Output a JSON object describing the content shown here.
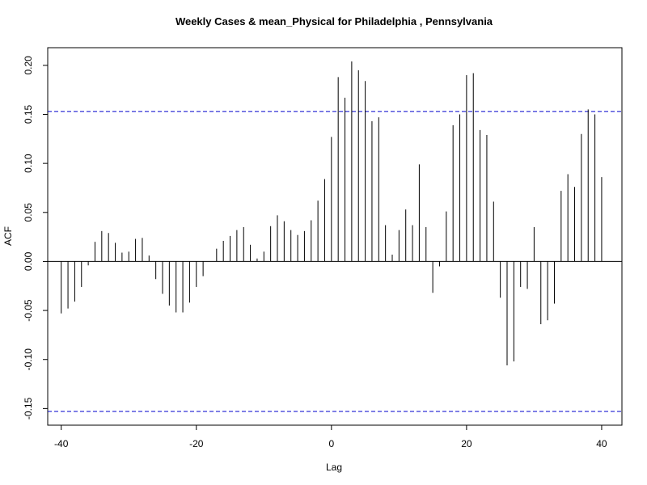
{
  "chart_data": {
    "type": "bar",
    "title": "Weekly Cases & mean_Physical for Philadelphia , Pennsylvania",
    "xlabel": "Lag",
    "ylabel": "ACF",
    "xlim": [
      -42,
      43
    ],
    "ylim": [
      -0.167,
      0.218
    ],
    "x_ticks": [
      {
        "value": -40,
        "label": "-40"
      },
      {
        "value": -20,
        "label": "-20"
      },
      {
        "value": 0,
        "label": "0"
      },
      {
        "value": 20,
        "label": "20"
      },
      {
        "value": 40,
        "label": "40"
      }
    ],
    "y_ticks": [
      {
        "value": -0.15,
        "label": "-0.15"
      },
      {
        "value": -0.1,
        "label": "-0.10"
      },
      {
        "value": -0.05,
        "label": "-0.05"
      },
      {
        "value": 0.0,
        "label": "0.00"
      },
      {
        "value": 0.05,
        "label": "0.05"
      },
      {
        "value": 0.1,
        "label": "0.10"
      },
      {
        "value": 0.15,
        "label": "0.15"
      },
      {
        "value": 0.2,
        "label": "0.20"
      }
    ],
    "confidence_bounds": [
      0.153,
      -0.153
    ],
    "colors": {
      "bars": "#000000",
      "bounds": "#0000cc",
      "zero_line": "#000000"
    },
    "lags": [
      -40,
      -39,
      -38,
      -37,
      -36,
      -35,
      -34,
      -33,
      -32,
      -31,
      -30,
      -29,
      -28,
      -27,
      -26,
      -25,
      -24,
      -23,
      -22,
      -21,
      -20,
      -19,
      -18,
      -17,
      -16,
      -15,
      -14,
      -13,
      -12,
      -11,
      -10,
      -9,
      -8,
      -7,
      -6,
      -5,
      -4,
      -3,
      -2,
      -1,
      0,
      1,
      2,
      3,
      4,
      5,
      6,
      7,
      8,
      9,
      10,
      11,
      12,
      13,
      14,
      15,
      16,
      17,
      18,
      19,
      20,
      21,
      22,
      23,
      24,
      25,
      26,
      27,
      28,
      29,
      30,
      31,
      32,
      33,
      34,
      35,
      36,
      37,
      38,
      39,
      40
    ],
    "values": [
      -0.053,
      -0.048,
      -0.041,
      -0.026,
      -0.004,
      0.02,
      0.031,
      0.029,
      0.019,
      0.009,
      0.01,
      0.023,
      0.024,
      0.006,
      -0.018,
      -0.033,
      -0.045,
      -0.052,
      -0.052,
      -0.042,
      -0.026,
      -0.015,
      0.0,
      0.013,
      0.021,
      0.026,
      0.032,
      0.035,
      0.017,
      0.003,
      0.01,
      0.036,
      0.047,
      0.041,
      0.032,
      0.027,
      0.031,
      0.042,
      0.062,
      0.084,
      0.127,
      0.188,
      0.167,
      0.204,
      0.195,
      0.184,
      0.143,
      0.147,
      0.037,
      0.007,
      0.032,
      0.053,
      0.037,
      0.099,
      0.035,
      -0.032,
      -0.005,
      0.051,
      0.139,
      0.15,
      0.19,
      0.192,
      0.134,
      0.129,
      0.061,
      -0.037,
      -0.106,
      -0.102,
      -0.026,
      -0.028,
      0.035,
      -0.064,
      -0.06,
      -0.043,
      0.072,
      0.089,
      0.076,
      0.13,
      0.155,
      0.15,
      0.086
    ]
  }
}
